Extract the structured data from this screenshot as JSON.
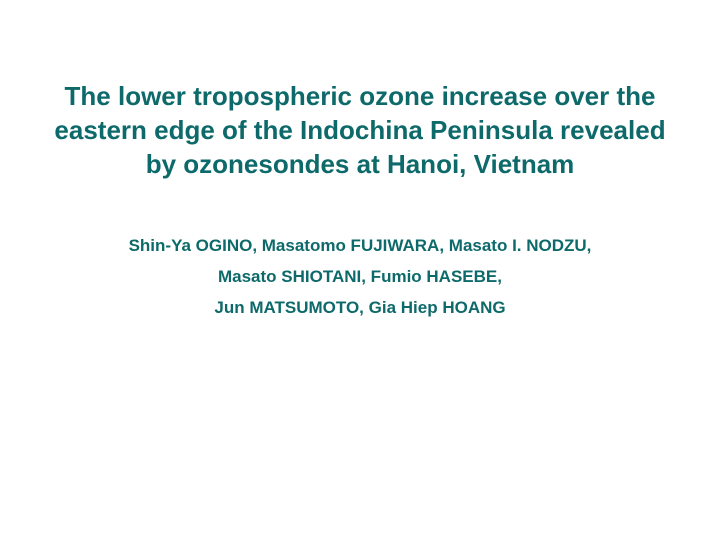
{
  "slide": {
    "title": "The lower tropospheric ozone increase over the eastern edge of the Indochina Peninsula revealed by ozonesondes at Hanoi, Vietnam",
    "title_color": "#0e6a6a",
    "title_fontsize": 26,
    "authors": {
      "line1": "Shin-Ya OGINO, Masatomo FUJIWARA, Masato I. NODZU,",
      "line2": "Masato SHIOTANI, Fumio HASEBE,",
      "line3": "Jun MATSUMOTO, Gia Hiep HOANG"
    },
    "authors_color": "#0e6a6a",
    "authors_fontsize": 17,
    "background_color": "#ffffff"
  }
}
